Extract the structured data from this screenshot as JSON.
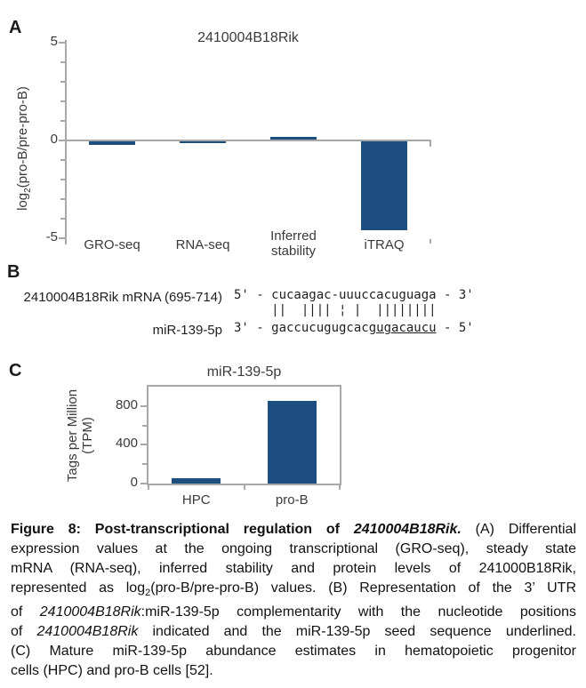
{
  "colors": {
    "bar": "#1C4E80",
    "axis": "#A8A8A8",
    "text": "#3A3A3A"
  },
  "panels": {
    "a": {
      "label": "A",
      "ylabel": {
        "pre": "log",
        "sub": "2",
        "post": "(pro-B/pre-pro-B)"
      }
    },
    "b": {
      "label": "B",
      "row1_label": "2410004B18Rik mRNA (695-714)",
      "row2_label": "miR-139-5p",
      "seq_top": "5' - cucaagac-uuuccacuguaga - 3'",
      "pairing": "     ||  |||| ¦ |  ||||||||",
      "seq_bottom_pre": "3' - gaccucugugcacg",
      "seq_bottom_seed": "ugacaucu",
      "seq_bottom_post": " - 5'"
    },
    "c": {
      "label": "C",
      "ylabel_line1": "Tags per Million",
      "ylabel_line2": "(TPM)"
    }
  },
  "chart_data": [
    {
      "type": "bar",
      "panel": "A",
      "title": "2410004B18Rik",
      "xlabel": "",
      "ylabel": "log2(pro-B/pre-pro-B)",
      "categories": [
        "GRO-seq",
        "RNA-seq",
        "Inferred stability",
        "iTRAQ"
      ],
      "values": [
        -0.2,
        -0.05,
        0.2,
        -4.55
      ],
      "ylim": [
        -5,
        5
      ],
      "ytick_labels": [
        5,
        0,
        -5
      ],
      "ytick_minor_step": 1,
      "grid": false,
      "legend": false
    },
    {
      "type": "bar",
      "panel": "C",
      "title": "miR-139-5p",
      "xlabel": "",
      "ylabel": "Tags per Million (TPM)",
      "categories": [
        "HPC",
        "pro-B"
      ],
      "values": [
        55,
        850
      ],
      "ylim": [
        0,
        1000
      ],
      "ytick_labels": [
        0,
        400,
        800
      ],
      "ytick_minor_step": 200,
      "grid": false,
      "legend": false
    }
  ],
  "caption": {
    "lines": [
      [
        {
          "t": "Figure 8: Post-transcriptional regulation of ",
          "s": "b"
        },
        {
          "t": "2410004B18Rik.",
          "s": "bi"
        },
        {
          "t": " (A) Differential",
          "s": ""
        }
      ],
      [
        {
          "t": "expression values at the ongoing transcriptional (GRO-seq), steady state",
          "s": ""
        }
      ],
      [
        {
          "t": "mRNA (RNA-seq), inferred stability and protein levels of 241000B18Rik,",
          "s": ""
        }
      ],
      [
        {
          "t": "represented as log",
          "s": ""
        },
        {
          "t": "2",
          "s": "sub"
        },
        {
          "t": "(pro-B/pre-pro-B) values. (B) Representation of the 3’ UTR",
          "s": ""
        }
      ],
      [
        {
          "t": "of ",
          "s": ""
        },
        {
          "t": "2410004B18Rik",
          "s": "i"
        },
        {
          "t": ":miR-139-5p complementarity with the nucleotide positions",
          "s": ""
        }
      ],
      [
        {
          "t": "of ",
          "s": ""
        },
        {
          "t": "2410004B18Rik",
          "s": "i"
        },
        {
          "t": " indicated and the miR-139-5p seed sequence underlined.",
          "s": ""
        }
      ],
      [
        {
          "t": "(C) Mature miR-139-5p abundance estimates in hematopoietic progenitor",
          "s": ""
        }
      ],
      [
        {
          "t": "cells (HPC) and pro-B cells [52].",
          "s": ""
        }
      ]
    ]
  }
}
